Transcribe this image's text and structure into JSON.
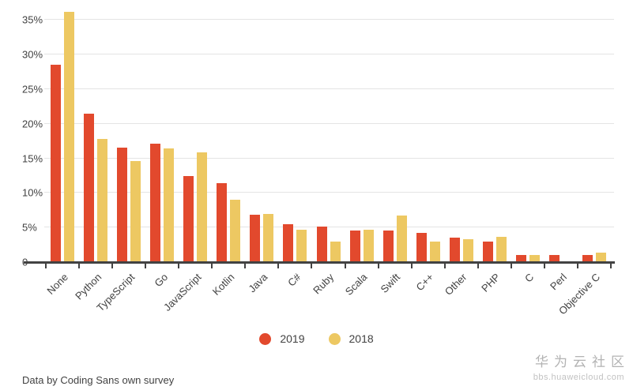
{
  "chart_data": {
    "type": "bar",
    "title": "",
    "xlabel": "",
    "ylabel": "",
    "ylim": [
      0,
      36.5
    ],
    "grid": true,
    "legend_position": "bottom",
    "categories": [
      "None",
      "Python",
      "TypeScript",
      "Go",
      "JavaScript",
      "Kotlin",
      "Java",
      "C#",
      "Ruby",
      "Scala",
      "Swift",
      "C++",
      "Other",
      "PHP",
      "C",
      "Perl",
      "Objective C"
    ],
    "series": [
      {
        "name": "2019",
        "color": "#e2492d",
        "values": [
          28.5,
          21.4,
          16.5,
          17.1,
          12.4,
          11.4,
          6.8,
          5.5,
          5.1,
          4.6,
          4.6,
          4.2,
          3.5,
          3.0,
          1.0,
          1.0,
          1.0
        ]
      },
      {
        "name": "2018",
        "color": "#edc862",
        "values": [
          36.2,
          17.8,
          14.6,
          16.4,
          15.8,
          9.0,
          7.0,
          4.7,
          3.0,
          4.7,
          6.7,
          3.0,
          3.3,
          3.7,
          1.0,
          0,
          1.4
        ]
      }
    ],
    "y_ticks": [
      {
        "value": 0,
        "label": "0"
      },
      {
        "value": 5,
        "label": "5%"
      },
      {
        "value": 10,
        "label": "10%"
      },
      {
        "value": 15,
        "label": "15%"
      },
      {
        "value": 20,
        "label": "20%"
      },
      {
        "value": 25,
        "label": "25%"
      },
      {
        "value": 30,
        "label": "30%"
      },
      {
        "value": 35,
        "label": "35%"
      }
    ]
  },
  "footer": {
    "source_note": "Data by Coding Sans own survey"
  },
  "watermark": {
    "title": "华为云社区",
    "url": "bbs.huaweicloud.com"
  },
  "colors": {
    "axis": "#424242",
    "gridline": "#e4e4e4",
    "label_text": "#424242",
    "watermark_text": "#b3b3b3"
  }
}
